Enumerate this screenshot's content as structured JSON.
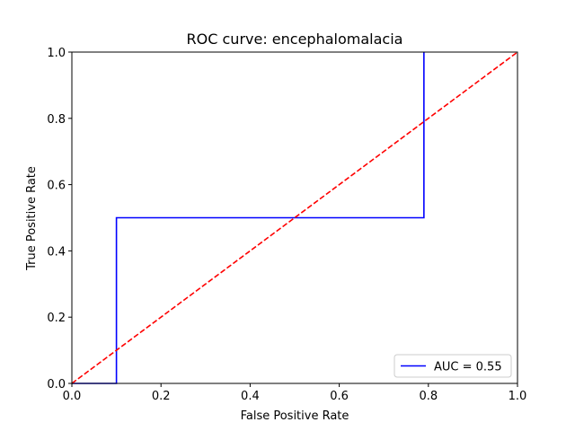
{
  "chart_data": {
    "type": "line",
    "title": "ROC curve: encephalomalacia",
    "xlabel": "False Positive Rate",
    "ylabel": "True Positive Rate",
    "xlim": [
      0.0,
      1.0
    ],
    "ylim": [
      0.0,
      1.0
    ],
    "xticks": [
      "0.0",
      "0.2",
      "0.4",
      "0.6",
      "0.8",
      "1.0"
    ],
    "yticks": [
      "0.0",
      "0.2",
      "0.4",
      "0.6",
      "0.8",
      "1.0"
    ],
    "grid": false,
    "legend_position": "lower right",
    "series": [
      {
        "name": "AUC = 0.55",
        "color": "#0000ff",
        "style": "solid",
        "x": [
          0.0,
          0.1,
          0.1,
          0.79,
          0.79
        ],
        "y": [
          0.0,
          0.0,
          0.5,
          0.5,
          1.0
        ]
      },
      {
        "color": "#ff0000",
        "style": "dashed",
        "x": [
          0.0,
          1.0
        ],
        "y": [
          0.0,
          1.0
        ]
      }
    ]
  }
}
